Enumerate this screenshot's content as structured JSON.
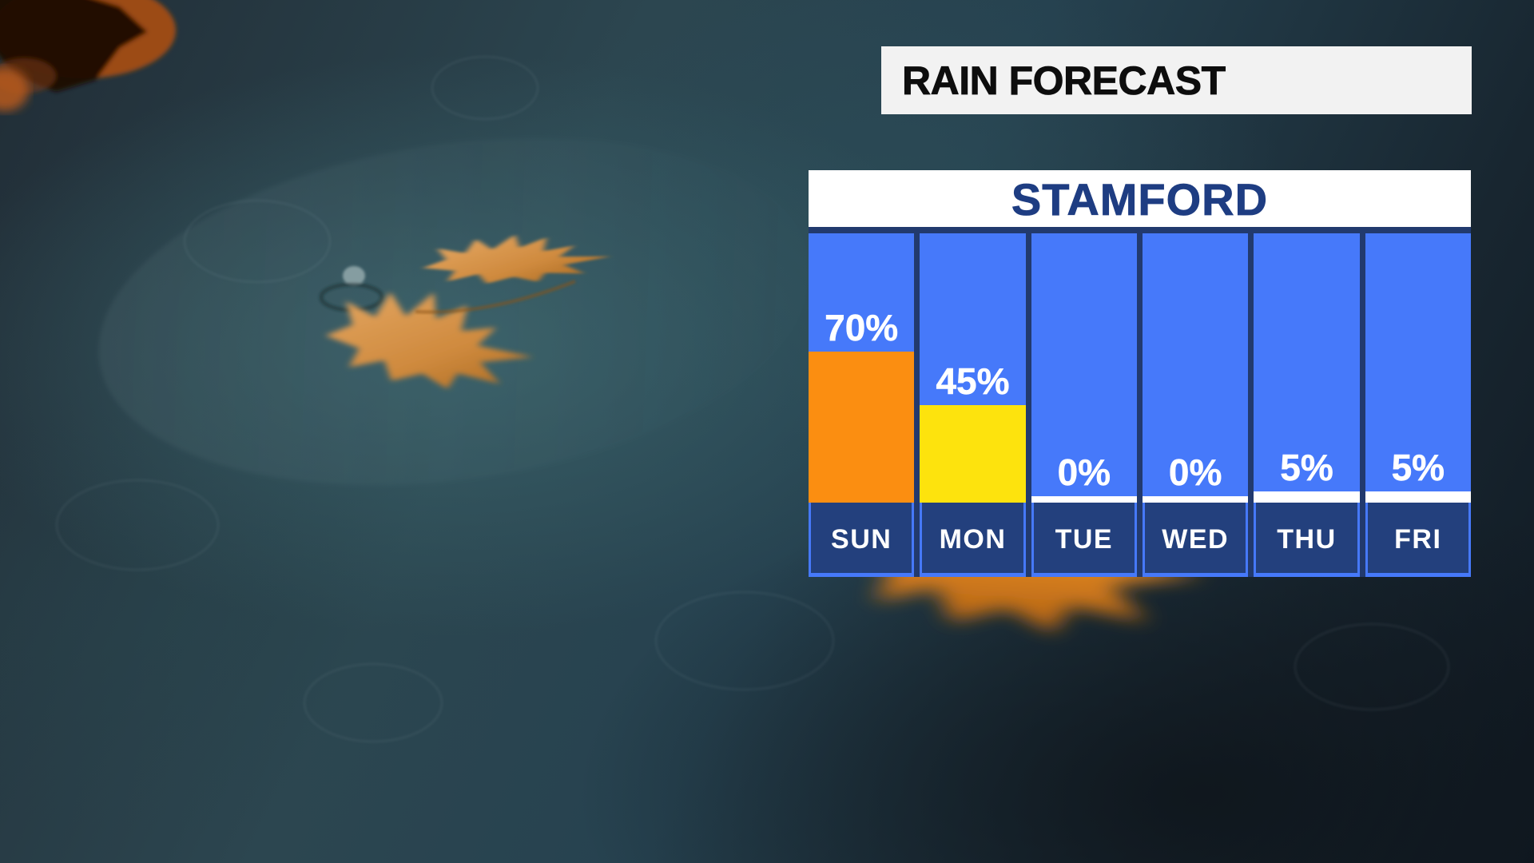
{
  "banner": {
    "title": "RAIN FORECAST"
  },
  "chart": {
    "title": "STAMFORD"
  },
  "theme": {
    "banner_bg": "#F2F2F2",
    "banner_text": "#0D0D0D",
    "chart_shell": "#223A6E",
    "column_blue": "#4679FA",
    "footer_navy": "#23407D",
    "title_blue": "#1E3D82",
    "label_white": "#FFFFFF"
  },
  "chart_data": {
    "type": "bar",
    "title": "STAMFORD",
    "categories": [
      "SUN",
      "MON",
      "TUE",
      "WED",
      "THU",
      "FRI"
    ],
    "values": [
      70,
      45,
      0,
      0,
      5,
      5
    ],
    "unit": "%",
    "value_labels": [
      "70%",
      "45%",
      "0%",
      "0%",
      "5%",
      "5%"
    ],
    "bar_colors": [
      "#FB8E11",
      "#FDE30D",
      "#FFFFFF",
      "#FFFFFF",
      "#FFFFFF",
      "#FFFFFF"
    ],
    "ylim": [
      0,
      100
    ],
    "grid": false,
    "legend_position": "none",
    "xlabel": "",
    "ylabel": ""
  },
  "background": {
    "scene": "rain-soaked dark pavement with fallen autumn maple leaves"
  }
}
